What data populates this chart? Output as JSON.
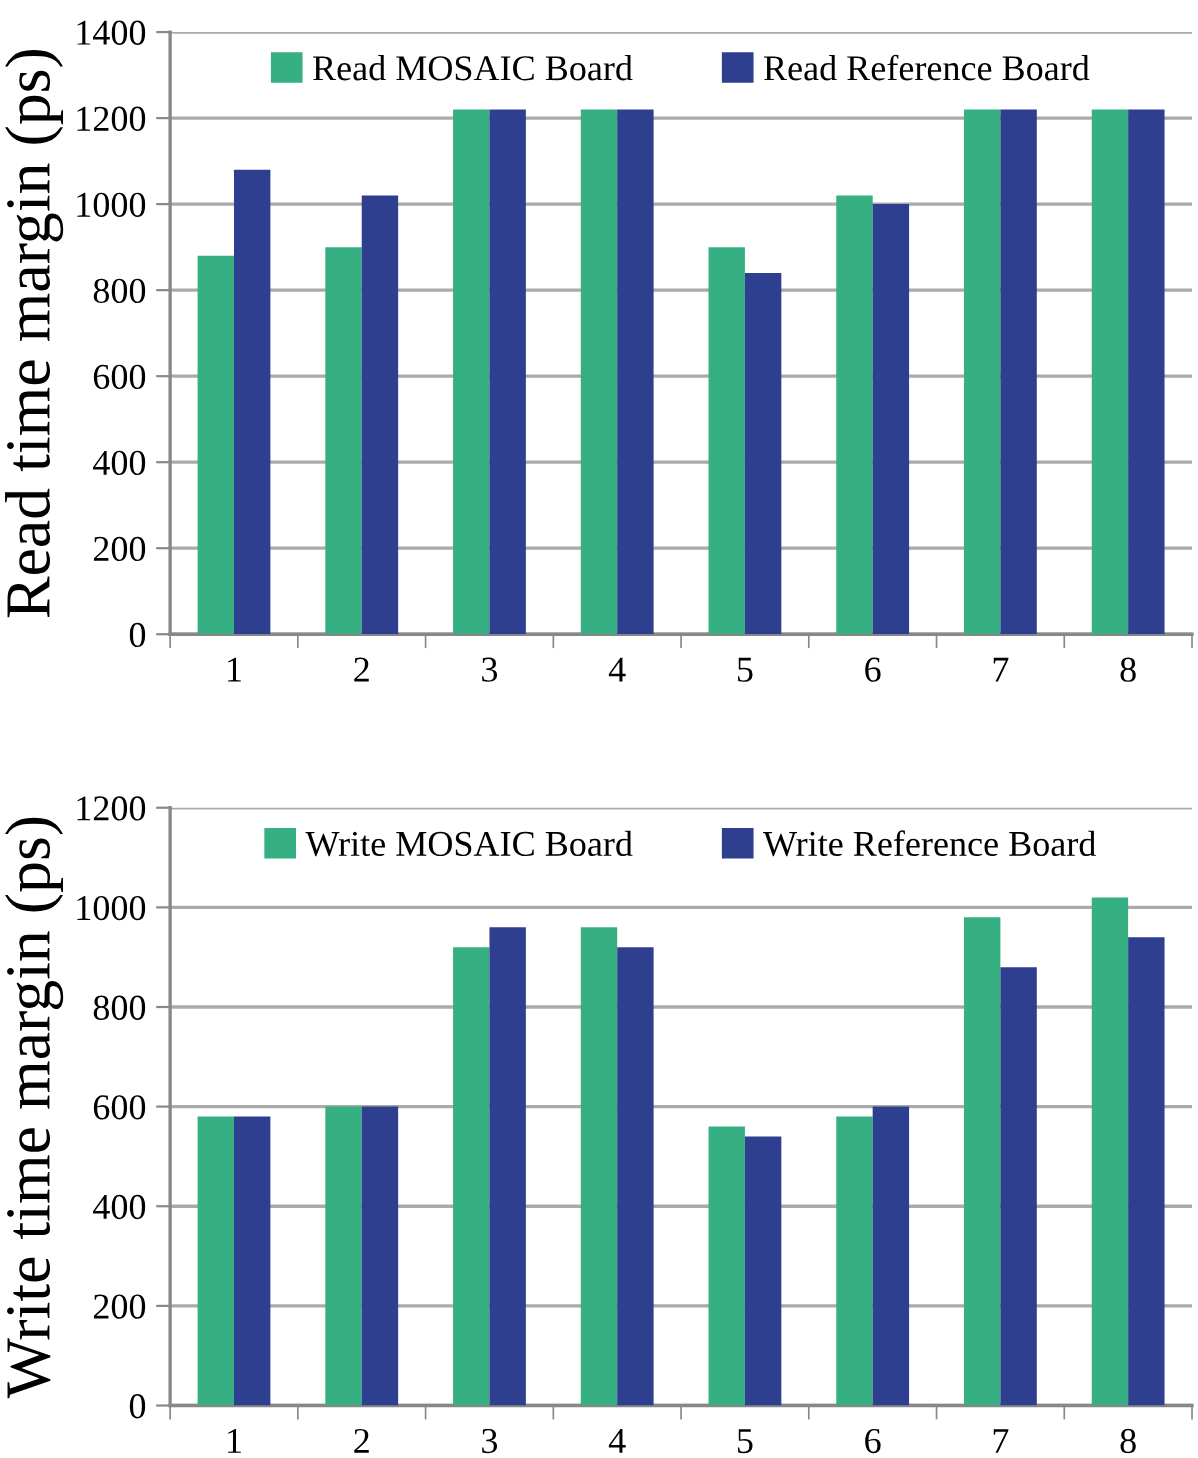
{
  "chart_data": [
    {
      "type": "bar",
      "ylabel": "Read time margin (ps)",
      "categories": [
        "1",
        "2",
        "3",
        "4",
        "5",
        "6",
        "7",
        "8"
      ],
      "series": [
        {
          "name": "Read MOSAIC Board",
          "color": "#36b083",
          "values": [
            880,
            900,
            1220,
            1220,
            900,
            1020,
            1220,
            1220
          ]
        },
        {
          "name": "Read Reference Board",
          "color": "#2e3f8f",
          "values": [
            1080,
            1020,
            1220,
            1220,
            840,
            1000,
            1220,
            1220
          ]
        }
      ],
      "ylim": [
        0,
        1400
      ],
      "yticks": [
        0,
        200,
        400,
        600,
        800,
        1000,
        1200,
        1400
      ],
      "grid": "y",
      "legend": "top"
    },
    {
      "type": "bar",
      "ylabel": "Write time margin (ps)",
      "categories": [
        "1",
        "2",
        "3",
        "4",
        "5",
        "6",
        "7",
        "8"
      ],
      "series": [
        {
          "name": "Write MOSAIC Board",
          "color": "#36b083",
          "values": [
            580,
            600,
            920,
            960,
            560,
            580,
            980,
            1020
          ]
        },
        {
          "name": "Write Reference Board",
          "color": "#2e3f8f",
          "values": [
            580,
            600,
            960,
            920,
            540,
            600,
            880,
            940
          ]
        }
      ],
      "ylim": [
        0,
        1200
      ],
      "yticks": [
        0,
        200,
        400,
        600,
        800,
        1000,
        1200
      ],
      "grid": "y",
      "legend": "top"
    }
  ]
}
